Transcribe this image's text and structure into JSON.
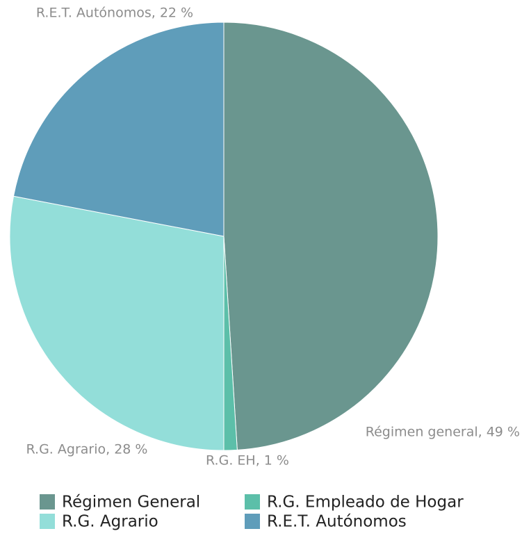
{
  "chart_data": {
    "type": "pie",
    "categories": [
      "Régimen General",
      "R.G. Empleado de Hogar",
      "R.G. Agrario",
      "R.E.T. Autónomos"
    ],
    "values": [
      49,
      1,
      28,
      22
    ],
    "value_labels": [
      "Régimen general, 49 %",
      "R.G. EH, 1 %",
      "R.G. Agrario, 28 %",
      "R.E.T. Autónomos, 22 %"
    ],
    "colors": [
      "#6a968f",
      "#5cbfa9",
      "#93ded9",
      "#5f9dba"
    ],
    "legend": "bottom"
  }
}
